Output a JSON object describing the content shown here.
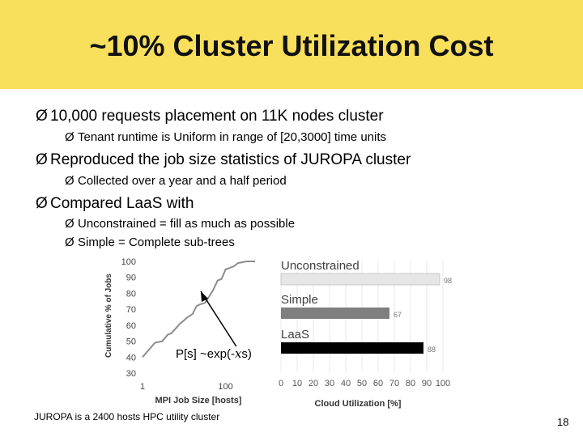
{
  "slide": {
    "title": "~10% Cluster Utilization Cost",
    "bullets": [
      {
        "level": 1,
        "text": "10,000 requests placement on 11K nodes cluster"
      },
      {
        "level": 2,
        "text": "Tenant runtime is Uniform in range of [20,3000] time units"
      },
      {
        "level": 1,
        "text": "Reproduced the job size statistics of JUROPA cluster"
      },
      {
        "level": 2,
        "text": "Collected over a year and a half period"
      },
      {
        "level": 1,
        "text": "Compared LaaS with"
      },
      {
        "level": 2,
        "text": "Unconstrained = fill as much as possible"
      },
      {
        "level": 2,
        "text": "Simple = Complete sub-trees"
      }
    ],
    "bullet_glyph": "Ø",
    "annotation": "P[s] ~exp(-",
    "annotation_symbol": "𝑥",
    "annotation_tail": "s)",
    "footnote": "JUROPA is a 2400 hosts HPC utility cluster",
    "page_number": "18"
  },
  "colors": {
    "title_band": "#f8df5c"
  },
  "chart_data": [
    {
      "type": "line",
      "title": "",
      "xlabel": "MPI Job Size [hosts]",
      "ylabel": "Cumulative % of Jobs",
      "x_scale": "log",
      "x_ticks": [
        1,
        100
      ],
      "y_ticks": [
        30,
        40,
        50,
        60,
        70,
        80,
        90,
        100
      ],
      "ylim": [
        30,
        100
      ],
      "series": [
        {
          "x": [
            1,
            2,
            3,
            4,
            5,
            8,
            10,
            12,
            16,
            20,
            24,
            32,
            40,
            50,
            64,
            80,
            100,
            128,
            160,
            200,
            256,
            320,
            400,
            512
          ],
          "values": [
            40,
            49,
            50,
            54,
            55,
            61,
            63,
            65,
            67,
            72,
            73,
            74,
            78,
            82,
            88,
            89,
            95,
            96,
            97,
            99,
            99.5,
            100,
            100,
            100
          ]
        }
      ]
    },
    {
      "type": "bar",
      "orientation": "horizontal",
      "title": "",
      "xlabel": "Cloud Utilization [%]",
      "x_ticks": [
        0,
        10,
        20,
        30,
        40,
        50,
        60,
        70,
        80,
        90,
        100
      ],
      "xlim": [
        0,
        100
      ],
      "categories": [
        "Unconstrained",
        "Simple",
        "LaaS"
      ],
      "values": [
        98,
        67,
        88
      ],
      "colors": [
        "#e6e6e6",
        "#7f7f7f",
        "#000000"
      ]
    }
  ]
}
